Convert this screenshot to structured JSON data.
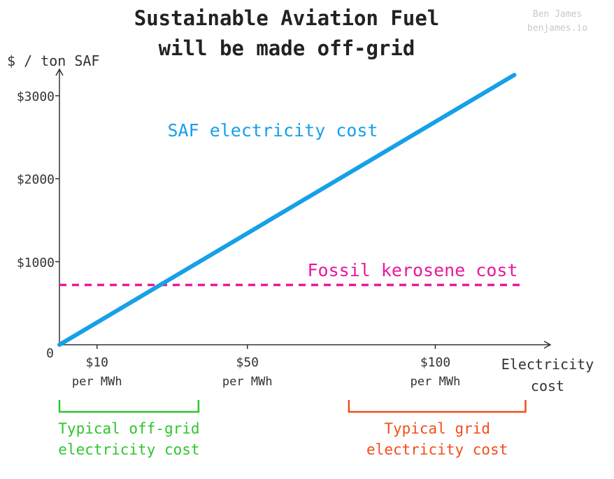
{
  "credit": {
    "name": "Ben James",
    "site": "benjames.io"
  },
  "chart_data": {
    "type": "line",
    "title": [
      "Sustainable Aviation Fuel",
      "will be made off-grid"
    ],
    "ylabel": "$ / ton SAF",
    "xlabel": [
      "Electricity",
      "cost"
    ],
    "xlim": [
      0,
      130
    ],
    "ylim": [
      0,
      3000
    ],
    "y_origin_label": "0",
    "yticks": [
      {
        "value": 1000,
        "label": "$1000"
      },
      {
        "value": 2000,
        "label": "$2000"
      },
      {
        "value": 3000,
        "label": "$3000"
      }
    ],
    "xticks": [
      {
        "value": 10,
        "label": "$10",
        "sublabel": "per MWh"
      },
      {
        "value": 50,
        "label": "$50",
        "sublabel": "per MWh"
      },
      {
        "value": 100,
        "label": "$100",
        "sublabel": "per MWh"
      }
    ],
    "series": [
      {
        "name": "SAF electricity cost",
        "color": "#16a0e8",
        "style": "solid",
        "x": [
          0,
          121
        ],
        "y": [
          0,
          3250
        ]
      },
      {
        "name": "Fossil kerosene cost",
        "color": "#e8199c",
        "style": "dashed",
        "x": [
          0,
          123
        ],
        "y": [
          720,
          720
        ]
      }
    ],
    "brackets": [
      {
        "from": 0,
        "to": 37,
        "lines": [
          "Typical off-grid",
          "electricity cost"
        ],
        "color": "#2ec52e"
      },
      {
        "from": 77,
        "to": 124,
        "lines": [
          "Typical grid",
          "electricity cost"
        ],
        "color": "#ee4f1c"
      }
    ],
    "grid": false,
    "legend": "none"
  }
}
